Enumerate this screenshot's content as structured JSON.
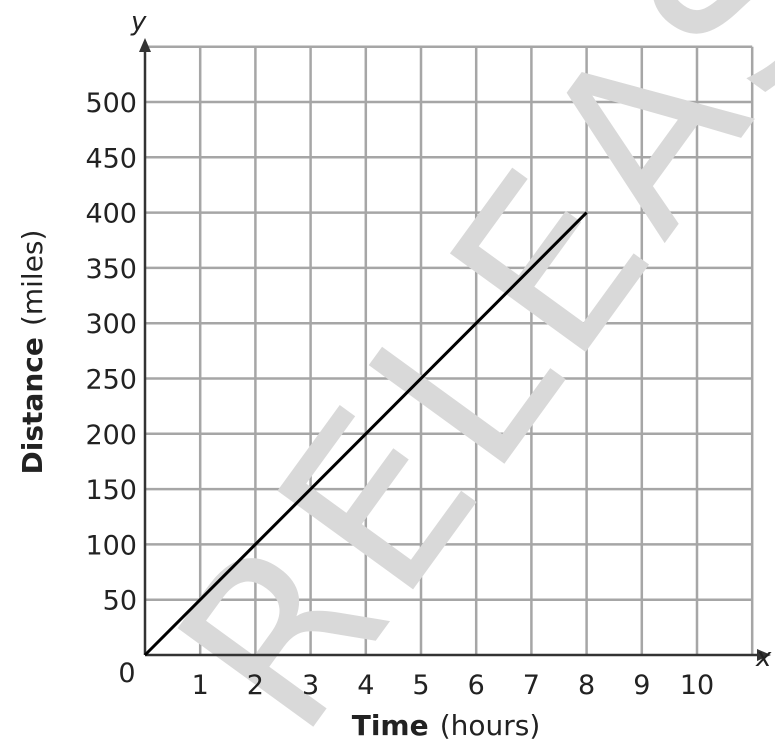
{
  "watermark": "RELEASED",
  "chart_data": {
    "type": "line",
    "xlabel_bold": "Time",
    "xlabel_unit": "(hours)",
    "ylabel_bold": "Distance",
    "ylabel_unit": "(miles)",
    "x_axis_name": "x",
    "y_axis_name": "y",
    "xlim": [
      0,
      11
    ],
    "ylim": [
      0,
      550
    ],
    "x_ticks": [
      1,
      2,
      3,
      4,
      5,
      6,
      7,
      8,
      9,
      10
    ],
    "y_ticks": [
      50,
      100,
      150,
      200,
      250,
      300,
      350,
      400,
      450,
      500
    ],
    "origin_label": "0",
    "grid": true,
    "series": [
      {
        "x": [
          0,
          8
        ],
        "y": [
          0,
          400
        ],
        "color": "#000000"
      }
    ]
  }
}
